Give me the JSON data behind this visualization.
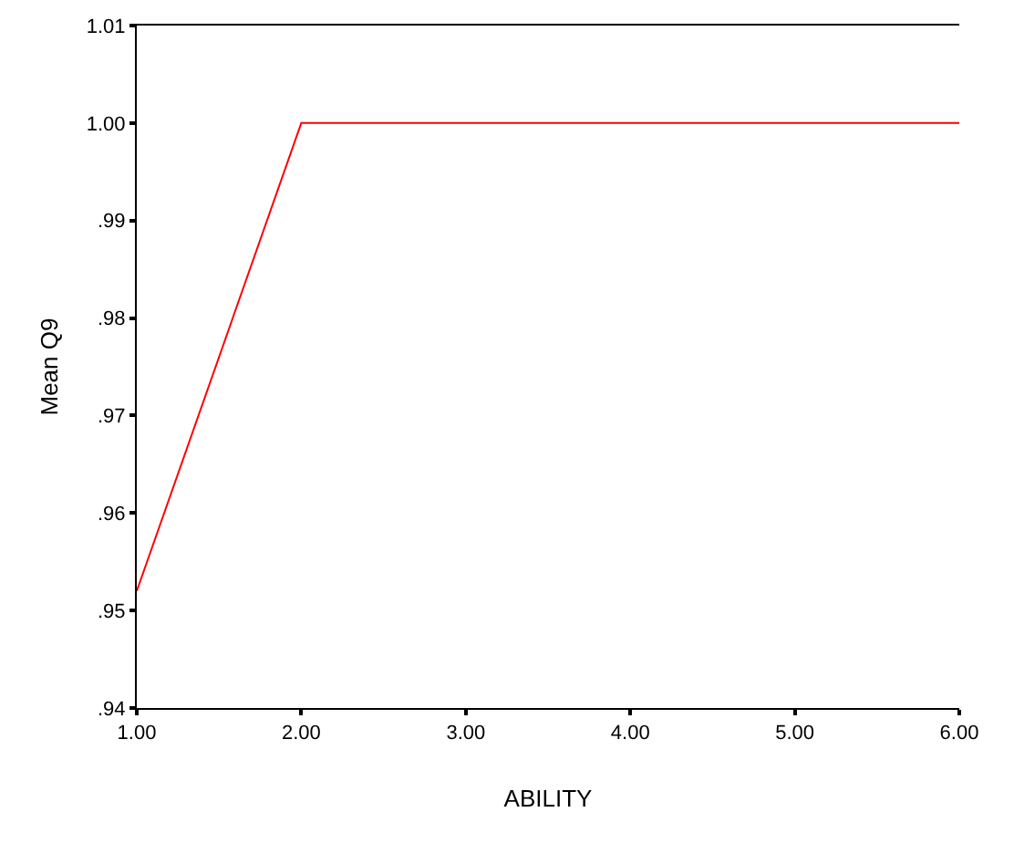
{
  "chart_data": {
    "type": "line",
    "xlabel": "ABILITY",
    "ylabel": "Mean Q9",
    "x": [
      1,
      2,
      3,
      4,
      5,
      6
    ],
    "series": [
      {
        "color": "#ff0000",
        "values": [
          0.952,
          1.0,
          1.0,
          1.0,
          1.0,
          1.0
        ]
      }
    ],
    "xlim": [
      1,
      6
    ],
    "xticks": [
      {
        "value": 1,
        "label": "1.00"
      },
      {
        "value": 2,
        "label": "2.00"
      },
      {
        "value": 3,
        "label": "3.00"
      },
      {
        "value": 4,
        "label": "4.00"
      },
      {
        "value": 5,
        "label": "5.00"
      },
      {
        "value": 6,
        "label": "6.00"
      }
    ],
    "ylim": [
      0.94,
      1.01
    ],
    "yticks": [
      {
        "value": 0.94,
        "label": ".94"
      },
      {
        "value": 0.95,
        "label": ".95"
      },
      {
        "value": 0.96,
        "label": ".96"
      },
      {
        "value": 0.97,
        "label": ".97"
      },
      {
        "value": 0.98,
        "label": ".98"
      },
      {
        "value": 0.99,
        "label": ".99"
      },
      {
        "value": 1.0,
        "label": "1.00"
      },
      {
        "value": 1.01,
        "label": "1.01"
      }
    ],
    "grid": false
  }
}
